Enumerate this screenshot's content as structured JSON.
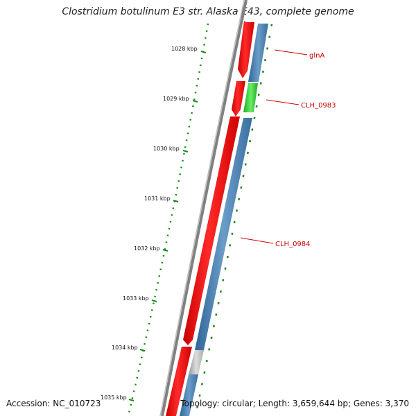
{
  "title": "Clostridium botulinum E3 str. Alaska E43, complete genome",
  "ticks": [
    {
      "label": "1028 kbp"
    },
    {
      "label": "1029 kbp"
    },
    {
      "label": "1030 kbp"
    },
    {
      "label": "1031 kbp"
    },
    {
      "label": "1032 kbp"
    },
    {
      "label": "1033 kbp"
    },
    {
      "label": "1034 kbp"
    },
    {
      "label": "1035 kbp"
    }
  ],
  "genes": [
    {
      "name": "glnA",
      "color": "#cc0000"
    },
    {
      "name": "CLH_0983",
      "color": "#cc0000"
    },
    {
      "name": "CLH_0984",
      "color": "#cc0000"
    }
  ],
  "colors": {
    "backbone": "#808080",
    "cds_red": "#ff0000",
    "cds_blue": "#4a7fae",
    "cds_green": "#33cc33",
    "tick_green": "#1a8a1a",
    "label_red": "#cc0000"
  },
  "footer": {
    "accession": "Accession: NC_010723",
    "summary": "Topology: circular; Length: 3,659,644 bp; Genes: 3,370"
  }
}
